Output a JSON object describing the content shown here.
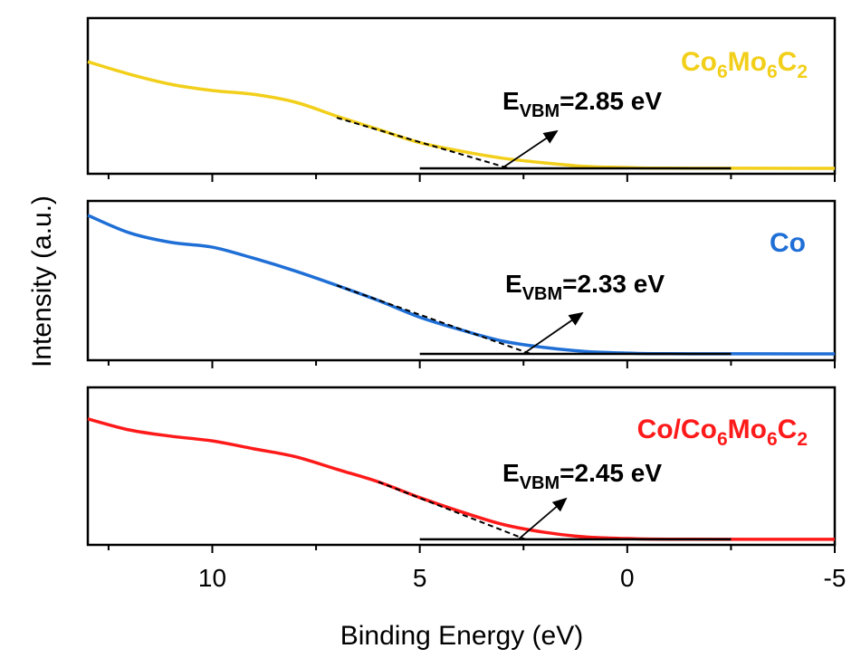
{
  "chart_data": {
    "type": "line",
    "xlabel": "Binding Energy (eV)",
    "ylabel": "Intensity (a.u.)",
    "xlim": [
      13,
      -5
    ],
    "x_ticks": [
      10,
      5,
      0,
      -5
    ],
    "x_minor_ticks": [
      12.5,
      7.5,
      2.5,
      -2.5
    ],
    "x_reversed": true,
    "grid": false,
    "panels": [
      {
        "name": "Co6Mo6C2",
        "color": "#f2cf1a",
        "x": [
          13,
          12,
          11,
          10,
          9,
          8,
          7,
          6,
          5,
          4,
          3,
          2,
          1,
          0,
          -1,
          -5
        ],
        "y": [
          0.72,
          0.64,
          0.575,
          0.535,
          0.51,
          0.46,
          0.37,
          0.285,
          0.2,
          0.145,
          0.1,
          0.07,
          0.047,
          0.04,
          0.036,
          0.035
        ],
        "baseline": {
          "from": 5,
          "to": -2.5,
          "y": 0.035
        },
        "tangent": {
          "from_x": 7,
          "from_y": 0.36
        },
        "evbm": {
          "main": "E",
          "sub": "VBM",
          "rest": "=2.85 eV",
          "value": 2.85
        }
      },
      {
        "name": "Co",
        "color": "#1f6fd6",
        "x": [
          13,
          12,
          11,
          10,
          9,
          8,
          7,
          6,
          5,
          4,
          3,
          2,
          1,
          0,
          -1,
          -5
        ],
        "y": [
          0.91,
          0.8,
          0.74,
          0.71,
          0.64,
          0.56,
          0.47,
          0.375,
          0.27,
          0.19,
          0.12,
          0.08,
          0.055,
          0.045,
          0.041,
          0.04
        ],
        "baseline": {
          "from": 5,
          "to": -2.5,
          "y": 0.04
        },
        "tangent": {
          "from_x": 7,
          "from_y": 0.47
        },
        "evbm": {
          "main": "E",
          "sub": "VBM",
          "rest": "=2.33 eV",
          "value": 2.33
        }
      },
      {
        "name": "Co/Co6Mo6C2",
        "color": "#ff1a1a",
        "x": [
          13,
          12,
          11,
          10,
          9,
          8,
          7,
          6,
          5,
          4,
          3,
          2,
          1,
          0,
          -1,
          -5
        ],
        "y": [
          0.8,
          0.73,
          0.69,
          0.66,
          0.61,
          0.56,
          0.48,
          0.4,
          0.3,
          0.21,
          0.13,
          0.08,
          0.05,
          0.04,
          0.036,
          0.035
        ],
        "baseline": {
          "from": 5,
          "to": -2.5,
          "y": 0.035
        },
        "tangent": {
          "from_x": 6,
          "from_y": 0.4
        },
        "evbm": {
          "main": "E",
          "sub": "VBM",
          "rest": "=2.45 eV",
          "value": 2.45
        }
      }
    ]
  }
}
